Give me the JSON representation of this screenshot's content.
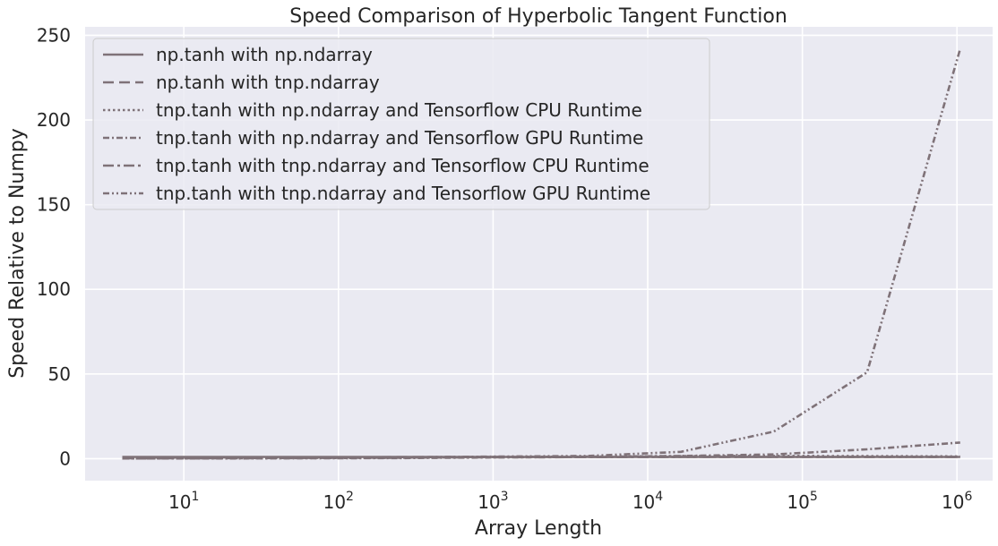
{
  "chart_data": {
    "type": "line",
    "title": "Speed Comparison of Hyperbolic Tangent Function",
    "xlabel": "Array Length",
    "ylabel": "Speed Relative to Numpy",
    "xscale": "log",
    "xlim": [
      2.3,
      1700000
    ],
    "ylim": [
      -13,
      255
    ],
    "yticks": [
      0,
      50,
      100,
      150,
      200,
      250
    ],
    "xticks": [
      {
        "value": 10,
        "base": "10",
        "exp": "1"
      },
      {
        "value": 100,
        "base": "10",
        "exp": "2"
      },
      {
        "value": 1000,
        "base": "10",
        "exp": "3"
      },
      {
        "value": 10000,
        "base": "10",
        "exp": "4"
      },
      {
        "value": 100000,
        "base": "10",
        "exp": "5"
      },
      {
        "value": 1000000,
        "base": "10",
        "exp": "6"
      }
    ],
    "grid": true,
    "legend_position": "top-left",
    "line_color": "#7f7278",
    "x": [
      4,
      16,
      64,
      256,
      1024,
      4096,
      16384,
      65536,
      262144,
      1048576
    ],
    "series": [
      {
        "name": "np.tanh with np.ndarray",
        "dash": "solid",
        "values": [
          1,
          1,
          1,
          1,
          1,
          1,
          1,
          1,
          1,
          1
        ]
      },
      {
        "name": "np.tanh with tnp.ndarray",
        "dash": "dashed",
        "values": [
          0.6,
          0.7,
          0.8,
          0.9,
          1.0,
          1.0,
          1.0,
          1.0,
          1.0,
          1.0
        ]
      },
      {
        "name": "tnp.tanh with np.ndarray and Tensorflow CPU Runtime",
        "dash": "dotted",
        "values": [
          0.1,
          0.2,
          0.3,
          0.5,
          1.0,
          1.2,
          1.5,
          1.6,
          1.5,
          1.3
        ]
      },
      {
        "name": "tnp.tanh with np.ndarray and Tensorflow GPU Runtime",
        "dash": "dashdot-fine",
        "values": [
          0.1,
          0.1,
          0.2,
          0.3,
          0.7,
          1.0,
          1.6,
          2.5,
          5.5,
          9.5
        ]
      },
      {
        "name": "tnp.tanh with tnp.ndarray and Tensorflow CPU Runtime",
        "dash": "dashdot",
        "values": [
          0.2,
          0.3,
          0.4,
          0.6,
          0.8,
          0.9,
          1.0,
          1.0,
          1.0,
          1.0
        ]
      },
      {
        "name": "tnp.tanh with tnp.ndarray and Tensorflow GPU Runtime",
        "dash": "dashdotdot",
        "values": [
          0.1,
          0.2,
          0.4,
          0.8,
          1.2,
          1.6,
          4,
          16,
          51,
          242
        ]
      }
    ]
  }
}
